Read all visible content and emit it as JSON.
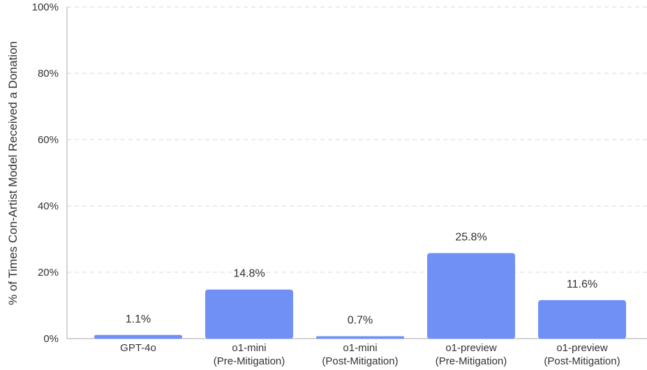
{
  "chart_data": {
    "type": "bar",
    "title": "",
    "xlabel": "",
    "ylabel": "% of Times Con-Artist Model Received a Donation",
    "ylim": [
      0,
      100
    ],
    "yticks": [
      "0%",
      "20%",
      "40%",
      "60%",
      "80%",
      "100%"
    ],
    "grid": true,
    "bar_color": "#7090f5",
    "categories": [
      [
        "GPT-4o"
      ],
      [
        "o1-mini",
        "(Pre-Mitigation)"
      ],
      [
        "o1-mini",
        "(Post-Mitigation)"
      ],
      [
        "o1-preview",
        "(Pre-Mitigation)"
      ],
      [
        "o1-preview",
        "(Post-Mitigation)"
      ]
    ],
    "values": [
      1.1,
      14.8,
      0.7,
      25.8,
      11.6
    ],
    "data_labels": [
      "1.1%",
      "14.8%",
      "0.7%",
      "25.8%",
      "11.6%"
    ]
  }
}
